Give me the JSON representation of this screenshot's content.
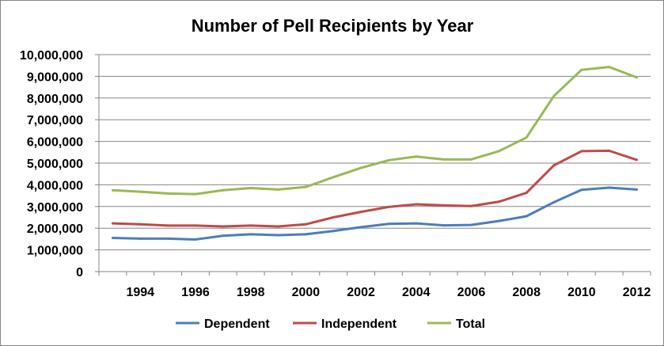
{
  "chart_data": {
    "type": "line",
    "title": "Number of Pell Recipients by Year",
    "xlabel": "",
    "ylabel": "",
    "x": [
      1993,
      1994,
      1995,
      1996,
      1997,
      1998,
      1999,
      2000,
      2001,
      2002,
      2003,
      2004,
      2005,
      2006,
      2007,
      2008,
      2009,
      2010,
      2011,
      2012
    ],
    "x_tick_labels": [
      "1994",
      "1996",
      "1998",
      "2000",
      "2002",
      "2004",
      "2006",
      "2008",
      "2010",
      "2012"
    ],
    "y_tick_labels": [
      "0",
      "1,000,000",
      "2,000,000",
      "3,000,000",
      "4,000,000",
      "5,000,000",
      "6,000,000",
      "7,000,000",
      "8,000,000",
      "9,000,000",
      "10,000,000"
    ],
    "ylim": [
      0,
      10000000
    ],
    "grid": true,
    "legend": "bottom",
    "series": [
      {
        "name": "Dependent",
        "color": "#4a7ebb",
        "values": [
          1550000,
          1520000,
          1520000,
          1480000,
          1650000,
          1720000,
          1680000,
          1720000,
          1870000,
          2050000,
          2200000,
          2220000,
          2130000,
          2150000,
          2330000,
          2550000,
          3200000,
          3770000,
          3870000,
          3780000
        ]
      },
      {
        "name": "Independent",
        "color": "#be4b48",
        "values": [
          2220000,
          2180000,
          2120000,
          2120000,
          2080000,
          2120000,
          2080000,
          2180000,
          2500000,
          2750000,
          2980000,
          3100000,
          3050000,
          3020000,
          3220000,
          3630000,
          4900000,
          5550000,
          5570000,
          5150000
        ]
      },
      {
        "name": "Total",
        "color": "#98b954",
        "values": [
          3750000,
          3680000,
          3600000,
          3570000,
          3750000,
          3850000,
          3780000,
          3900000,
          4350000,
          4780000,
          5130000,
          5300000,
          5170000,
          5170000,
          5550000,
          6180000,
          8100000,
          9300000,
          9430000,
          8950000
        ]
      }
    ]
  }
}
